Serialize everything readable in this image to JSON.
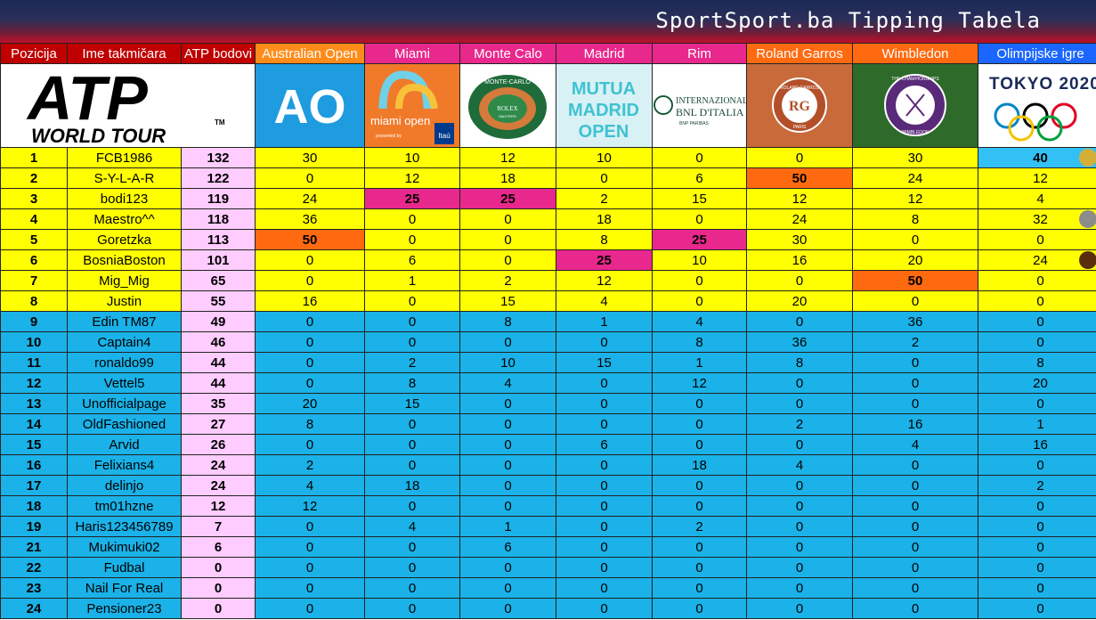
{
  "banner": {
    "title": "SportSport.ba Tipping Tabela"
  },
  "headers": [
    {
      "label": "Pozicija",
      "bg": "#c00000"
    },
    {
      "label": "Ime takmičara",
      "bg": "#c00000"
    },
    {
      "label": "ATP bodovi",
      "bg": "#c00000"
    },
    {
      "label": "Australian Open",
      "bg": "#ff8c1a"
    },
    {
      "label": "Miami",
      "bg": "#e8288c"
    },
    {
      "label": "Monte Calo",
      "bg": "#e8288c"
    },
    {
      "label": "Madrid",
      "bg": "#e8288c"
    },
    {
      "label": "Rim",
      "bg": "#e8288c"
    },
    {
      "label": "Roland Garros",
      "bg": "#ff6a10"
    },
    {
      "label": "Wimbledon",
      "bg": "#ff6a10"
    },
    {
      "label": "Olimpijske igre",
      "bg": "#1a66ff"
    }
  ],
  "logos": {
    "atp_main": "ATP",
    "atp_sub": "WORLD TOUR",
    "atp_tm": "TM",
    "ao": "AO",
    "miami": "miami open",
    "miami_sponsor": "Itaú",
    "miami_presented": "presented by",
    "monte_carlo": "MONTE-CARLO",
    "monte_rolex": "ROLEX",
    "monte_masters": "MASTERS",
    "madrid": [
      "MUTUA",
      "MADRID",
      "OPEN"
    ],
    "rome": [
      "INTERNAZIONALI",
      "BNL D'ITALIA"
    ],
    "rome_sub": "BNP PARIBAS",
    "rg": "ROLAND GARROS",
    "rg_city": "PARIS",
    "wimbledon_top": "THE CHAMPIONSHIPS",
    "wimbledon_bottom": "WIMBLEDON",
    "tokyo": "TOKYO 2020"
  },
  "colors": {
    "yellow": "#ffff00",
    "blue": "#1ab2e8",
    "orange": "#ff6a10",
    "magenta": "#e8288c",
    "pink": "#ffccff",
    "olympic_blue": "#33c1f5",
    "gold": "#d4af37",
    "silver": "#8c8c8c",
    "bronze": "#5a2d0c"
  },
  "rows": [
    {
      "pos": "1",
      "name": "FCB1986",
      "pts": "132",
      "scores": [
        "30",
        "10",
        "12",
        "10",
        "0",
        "0",
        "30",
        "40"
      ],
      "zone": "yellow",
      "medal": "gold",
      "last_bg": "olympic_blue"
    },
    {
      "pos": "2",
      "name": "S-Y-L-A-R",
      "pts": "122",
      "scores": [
        "0",
        "12",
        "18",
        "0",
        "6",
        "50",
        "24",
        "12"
      ],
      "zone": "yellow",
      "hl": [
        5
      ]
    },
    {
      "pos": "3",
      "name": "bodi123",
      "pts": "119",
      "scores": [
        "24",
        "25",
        "25",
        "2",
        "15",
        "12",
        "12",
        "4"
      ],
      "zone": "yellow",
      "hl": [
        1,
        2
      ]
    },
    {
      "pos": "4",
      "name": "Maestro^^",
      "pts": "118",
      "scores": [
        "36",
        "0",
        "0",
        "18",
        "0",
        "24",
        "8",
        "32"
      ],
      "zone": "yellow",
      "medal": "silver"
    },
    {
      "pos": "5",
      "name": "Goretzka",
      "pts": "113",
      "scores": [
        "50",
        "0",
        "0",
        "8",
        "25",
        "30",
        "0",
        "0"
      ],
      "zone": "yellow",
      "hl": [
        0,
        4
      ]
    },
    {
      "pos": "6",
      "name": "BosniaBoston",
      "pts": "101",
      "scores": [
        "0",
        "6",
        "0",
        "25",
        "10",
        "16",
        "20",
        "24"
      ],
      "zone": "yellow",
      "hl": [
        3
      ],
      "medal": "bronze"
    },
    {
      "pos": "7",
      "name": "Mig_Mig",
      "pts": "65",
      "scores": [
        "0",
        "1",
        "2",
        "12",
        "0",
        "0",
        "50",
        "0"
      ],
      "zone": "yellow",
      "hl": [
        6
      ]
    },
    {
      "pos": "8",
      "name": "Justin",
      "pts": "55",
      "scores": [
        "16",
        "0",
        "15",
        "4",
        "0",
        "20",
        "0",
        "0"
      ],
      "zone": "yellow"
    },
    {
      "pos": "9",
      "name": "Edin TM87",
      "pts": "49",
      "scores": [
        "0",
        "0",
        "8",
        "1",
        "4",
        "0",
        "36",
        "0"
      ],
      "zone": "blue"
    },
    {
      "pos": "10",
      "name": "Captain4",
      "pts": "46",
      "scores": [
        "0",
        "0",
        "0",
        "0",
        "8",
        "36",
        "2",
        "0"
      ],
      "zone": "blue"
    },
    {
      "pos": "11",
      "name": "ronaldo99",
      "pts": "44",
      "scores": [
        "0",
        "2",
        "10",
        "15",
        "1",
        "8",
        "0",
        "8"
      ],
      "zone": "blue"
    },
    {
      "pos": "12",
      "name": "Vettel5",
      "pts": "44",
      "scores": [
        "0",
        "8",
        "4",
        "0",
        "12",
        "0",
        "0",
        "20"
      ],
      "zone": "blue"
    },
    {
      "pos": "13",
      "name": "Unofficialpage",
      "pts": "35",
      "scores": [
        "20",
        "15",
        "0",
        "0",
        "0",
        "0",
        "0",
        "0"
      ],
      "zone": "blue"
    },
    {
      "pos": "14",
      "name": "OldFashioned",
      "pts": "27",
      "scores": [
        "8",
        "0",
        "0",
        "0",
        "0",
        "2",
        "16",
        "1"
      ],
      "zone": "blue"
    },
    {
      "pos": "15",
      "name": "Arvid",
      "pts": "26",
      "scores": [
        "0",
        "0",
        "0",
        "6",
        "0",
        "0",
        "4",
        "16"
      ],
      "zone": "blue"
    },
    {
      "pos": "16",
      "name": "Felixians4",
      "pts": "24",
      "scores": [
        "2",
        "0",
        "0",
        "0",
        "18",
        "4",
        "0",
        "0"
      ],
      "zone": "blue"
    },
    {
      "pos": "17",
      "name": "delinjo",
      "pts": "24",
      "scores": [
        "4",
        "18",
        "0",
        "0",
        "0",
        "0",
        "0",
        "2"
      ],
      "zone": "blue"
    },
    {
      "pos": "18",
      "name": "tm01hzne",
      "pts": "12",
      "scores": [
        "12",
        "0",
        "0",
        "0",
        "0",
        "0",
        "0",
        "0"
      ],
      "zone": "blue"
    },
    {
      "pos": "19",
      "name": "Haris123456789",
      "pts": "7",
      "scores": [
        "0",
        "4",
        "1",
        "0",
        "2",
        "0",
        "0",
        "0"
      ],
      "zone": "blue"
    },
    {
      "pos": "21",
      "name": "Mukimuki02",
      "pts": "6",
      "scores": [
        "0",
        "0",
        "6",
        "0",
        "0",
        "0",
        "0",
        "0"
      ],
      "zone": "blue"
    },
    {
      "pos": "22",
      "name": "Fudbal",
      "pts": "0",
      "scores": [
        "0",
        "0",
        "0",
        "0",
        "0",
        "0",
        "0",
        "0"
      ],
      "zone": "blue"
    },
    {
      "pos": "23",
      "name": "Nail For Real",
      "pts": "0",
      "scores": [
        "0",
        "0",
        "0",
        "0",
        "0",
        "0",
        "0",
        "0"
      ],
      "zone": "blue"
    },
    {
      "pos": "24",
      "name": "Pensioner23",
      "pts": "0",
      "scores": [
        "0",
        "0",
        "0",
        "0",
        "0",
        "0",
        "0",
        "0"
      ],
      "zone": "blue"
    }
  ]
}
